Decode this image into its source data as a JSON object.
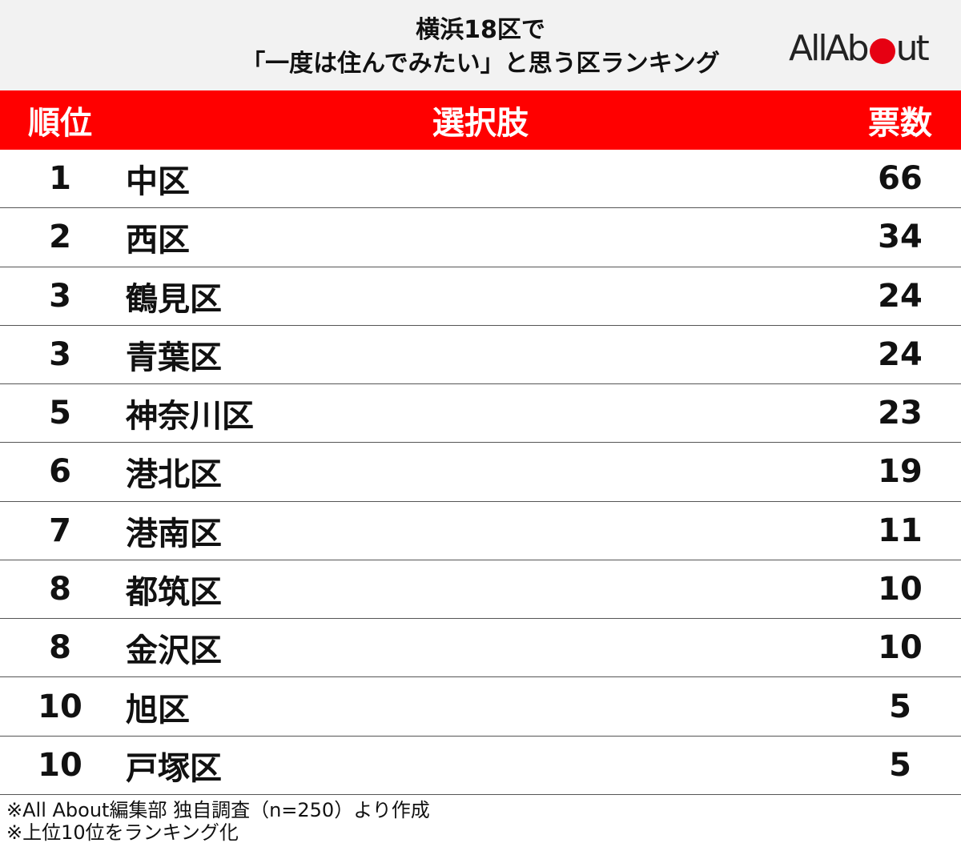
{
  "header": {
    "title": [
      "横浜18区で",
      "「一度は住んでみたい」と思う区ランキング"
    ],
    "logo": {
      "before": "AllAb",
      "after": "ut"
    }
  },
  "table": {
    "columns": [
      "順位",
      "選択肢",
      "票数"
    ],
    "rows": [
      [
        1,
        "中区",
        66
      ],
      [
        2,
        "西区",
        34
      ],
      [
        3,
        "鶴見区",
        24
      ],
      [
        3,
        "青葉区",
        24
      ],
      [
        5,
        "神奈川区",
        23
      ],
      [
        6,
        "港北区",
        19
      ],
      [
        7,
        "港南区",
        11
      ],
      [
        8,
        "都筑区",
        10
      ],
      [
        8,
        "金沢区",
        10
      ],
      [
        10,
        "旭区",
        5
      ],
      [
        10,
        "戸塚区",
        5
      ]
    ]
  },
  "notes": [
    "※All About編集部 独自調査（n=250）より作成",
    "※上位10位をランキング化"
  ]
}
